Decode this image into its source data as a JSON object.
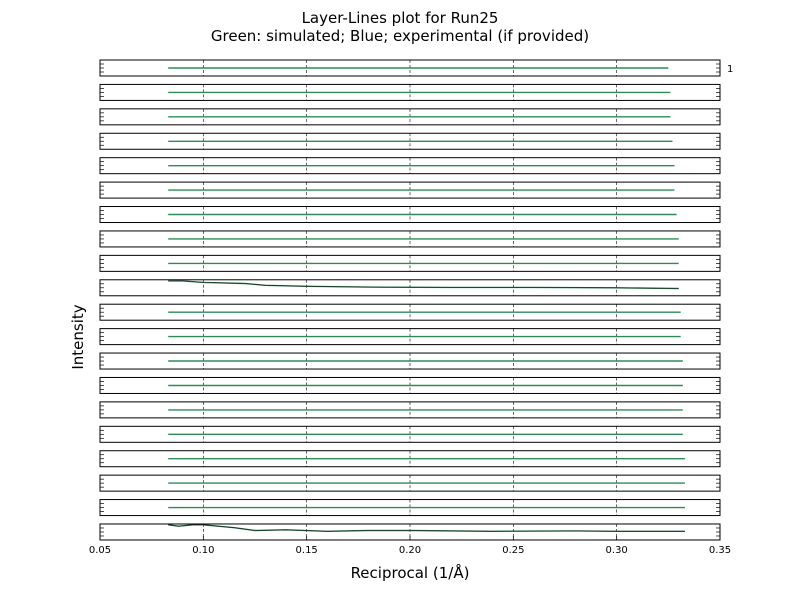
{
  "chart_data": {
    "type": "line",
    "title": "Layer-Lines plot for Run25",
    "subtitle": "Green: simulated; Blue; experimental (if provided)",
    "xlabel": "Reciprocal (1/Å)",
    "ylabel": "Intensity",
    "xlim": [
      0.05,
      0.35
    ],
    "xticks": [
      "0.05",
      "0.10",
      "0.15",
      "0.20",
      "0.25",
      "0.30",
      "0.35"
    ],
    "grid": "vertical dashed",
    "panel_count": 20,
    "right_tick_label": "1",
    "colors": {
      "simulated": "#2e8b57",
      "experimental": "#1f3fbf",
      "frame": "#000000",
      "grid": "#000000"
    },
    "x_start": 0.083,
    "panels": [
      {
        "x_end": 0.325
      },
      {
        "x_end": 0.326
      },
      {
        "x_end": 0.326
      },
      {
        "x_end": 0.327
      },
      {
        "x_end": 0.328
      },
      {
        "x_end": 0.328
      },
      {
        "x_end": 0.329
      },
      {
        "x_end": 0.33
      },
      {
        "x_end": 0.33
      },
      {
        "x_end": 0.33,
        "x": [
          0.083,
          0.09,
          0.1,
          0.12,
          0.13,
          0.15,
          0.18,
          0.22,
          0.26,
          0.3,
          0.33
        ],
        "y": [
          0.95,
          0.95,
          0.75,
          0.6,
          0.35,
          0.2,
          0.1,
          0.05,
          0.05,
          0.0,
          -0.1
        ]
      },
      {
        "x_end": 0.331
      },
      {
        "x_end": 0.331
      },
      {
        "x_end": 0.332
      },
      {
        "x_end": 0.332
      },
      {
        "x_end": 0.332
      },
      {
        "x_end": 0.332
      },
      {
        "x_end": 0.333
      },
      {
        "x_end": 0.333
      },
      {
        "x_end": 0.333
      },
      {
        "x_end": 0.333,
        "x": [
          0.083,
          0.088,
          0.095,
          0.1,
          0.115,
          0.125,
          0.14,
          0.16,
          0.18,
          0.2,
          0.24,
          0.28,
          0.3,
          0.333
        ],
        "y": [
          1.0,
          0.8,
          1.0,
          1.0,
          0.6,
          0.2,
          0.3,
          0.1,
          0.2,
          0.2,
          0.1,
          0.15,
          0.1,
          0.1
        ]
      }
    ]
  }
}
